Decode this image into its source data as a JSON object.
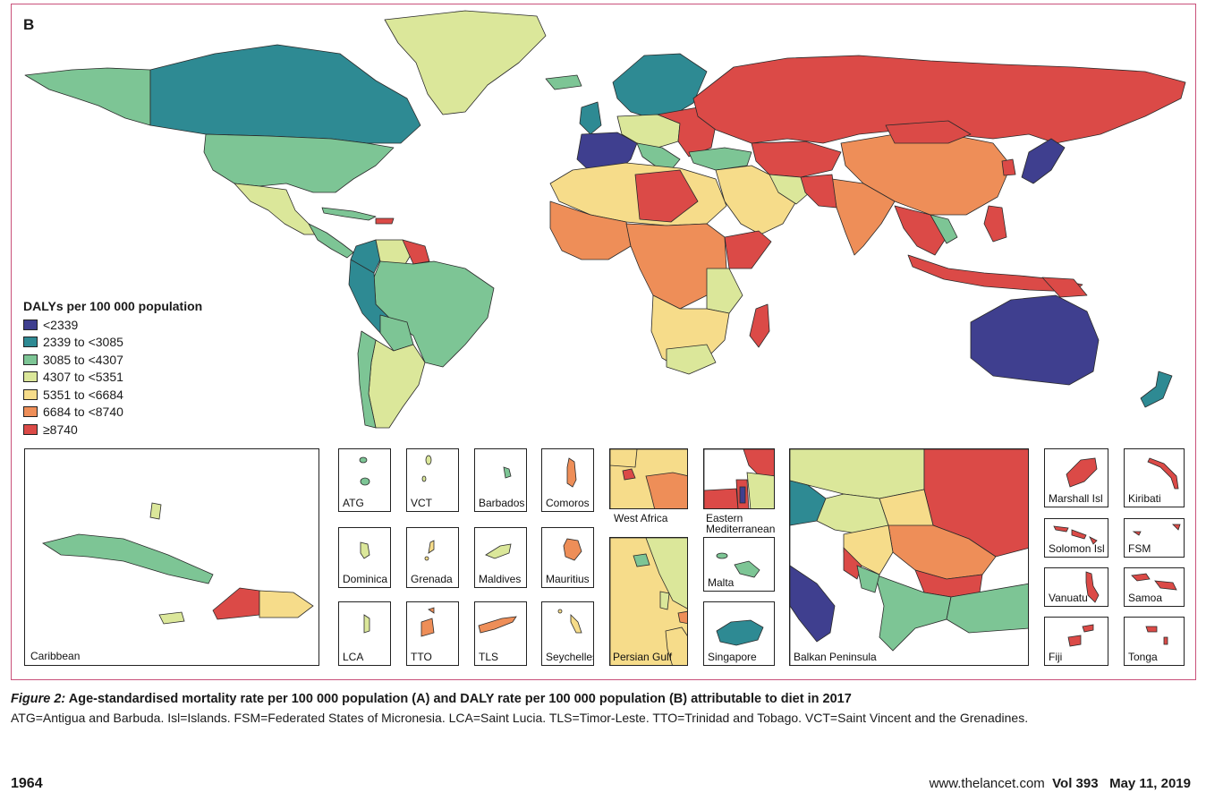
{
  "panel_label": "B",
  "legend": {
    "title": "DALYs per 100 000 population",
    "items": [
      {
        "label": "<2339",
        "color": "#3f3f8f"
      },
      {
        "label": "2339 to <3085",
        "color": "#2e8a93"
      },
      {
        "label": "3085 to <4307",
        "color": "#7dc595"
      },
      {
        "label": "4307 to <5351",
        "color": "#dbe79a"
      },
      {
        "label": "5351 to <6684",
        "color": "#f6dc8a"
      },
      {
        "label": "6684 to <8740",
        "color": "#ee8e58"
      },
      {
        "label": "≥8740",
        "color": "#db4a47"
      }
    ]
  },
  "insets": {
    "caribbean": "Caribbean",
    "atg": "ATG",
    "vct": "VCT",
    "barbados": "Barbados",
    "comoros": "Comoros",
    "dominica": "Dominica",
    "grenada": "Grenada",
    "maldives": "Maldives",
    "mauritius": "Mauritius",
    "lca": "LCA",
    "tto": "TTO",
    "tls": "TLS",
    "seychelles": "Seychelles",
    "west_africa": "West Africa",
    "eastern_med_1": "Eastern",
    "eastern_med_2": "Mediterranean",
    "persian_gulf": "Persian Gulf",
    "malta": "Malta",
    "singapore": "Singapore",
    "balkan": "Balkan Peninsula",
    "marshall": "Marshall Isl",
    "kiribati": "Kiribati",
    "solomon": "Solomon Isl",
    "fsm": "FSM",
    "vanuatu": "Vanuatu",
    "samoa": "Samoa",
    "fiji": "Fiji",
    "tonga": "Tonga"
  },
  "caption": {
    "figure_label": "Figure 2:",
    "title": "Age-standardised mortality rate per 100 000 population (A) and DALY rate per 100 000 population (B) attributable to diet in 2017",
    "abbreviations": "ATG=Antigua and Barbuda. Isl=Islands. FSM=Federated States of Micronesia. LCA=Saint Lucia. TLS=Timor-Leste. TTO=Trinidad and Tobago. VCT=Saint Vincent and the Grenadines."
  },
  "footer": {
    "page_number": "1964",
    "journal_url": "www.thelancet.com",
    "volume": "Vol 393",
    "date": "May 11, 2019"
  }
}
